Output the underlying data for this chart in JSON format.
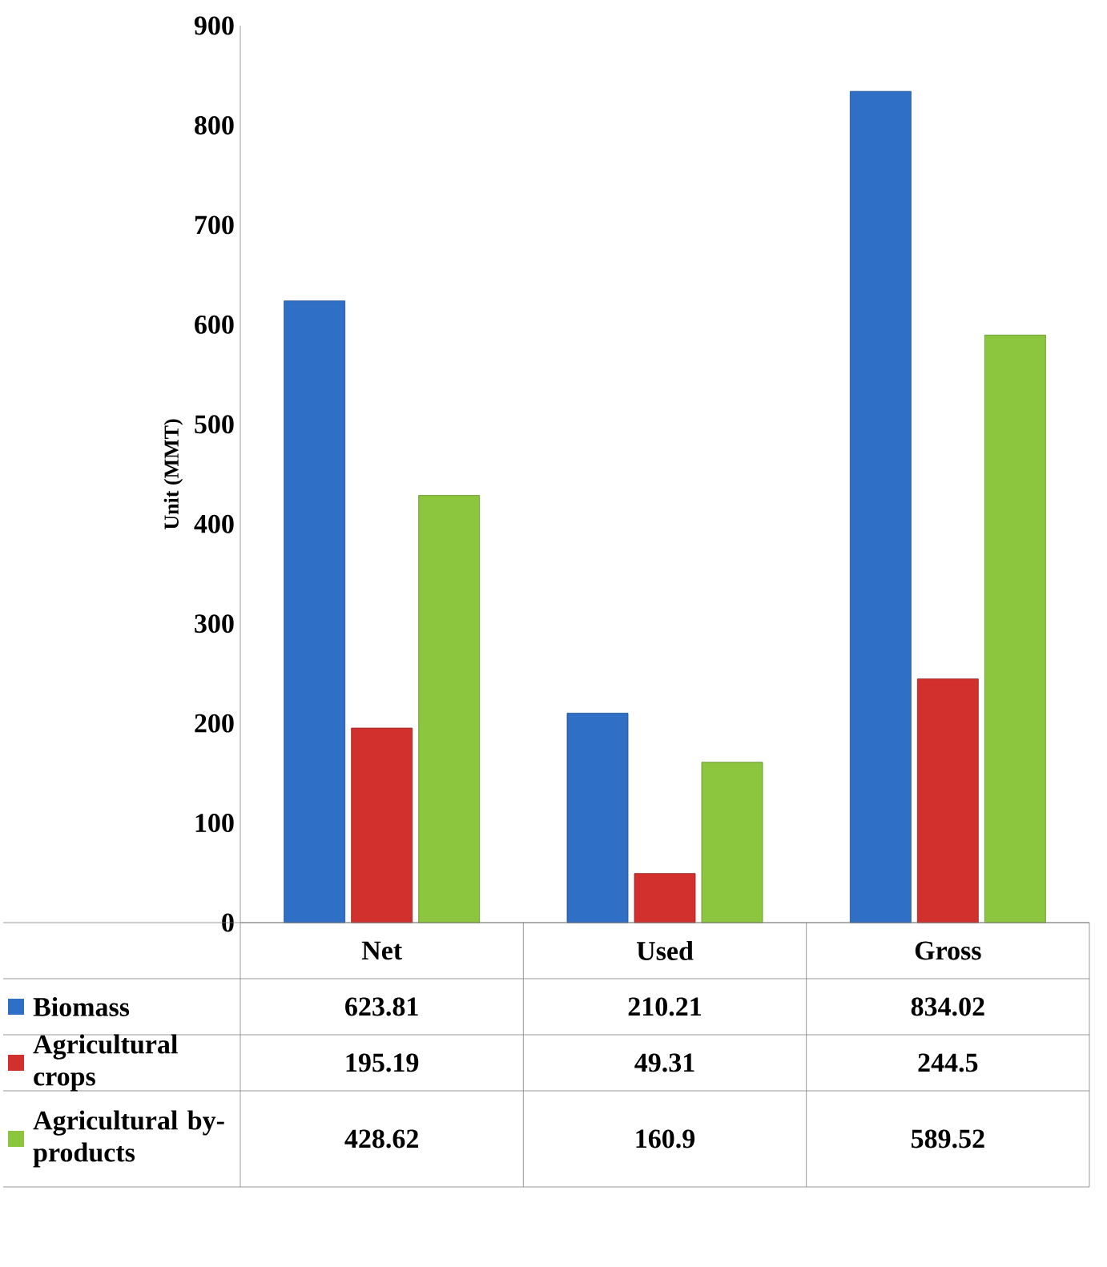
{
  "chart_data": {
    "type": "bar",
    "ylabel": "Unit (MMT)",
    "categories": [
      "Net",
      "Used",
      "Gross"
    ],
    "series": [
      {
        "name": "Biomass",
        "color": "#2f6fc6",
        "values": [
          623.81,
          210.21,
          834.02
        ]
      },
      {
        "name": "Agricultural crops",
        "color": "#d2302c",
        "values": [
          195.19,
          49.31,
          244.5
        ]
      },
      {
        "name": "Agricultural by-products",
        "color": "#8cc63e",
        "values": [
          428.62,
          160.9,
          589.52
        ]
      }
    ],
    "ylim": [
      0,
      900
    ],
    "yticks": [
      0,
      100,
      200,
      300,
      400,
      500,
      600,
      700,
      800,
      900
    ],
    "data_labels": true,
    "legend": "bottom"
  }
}
